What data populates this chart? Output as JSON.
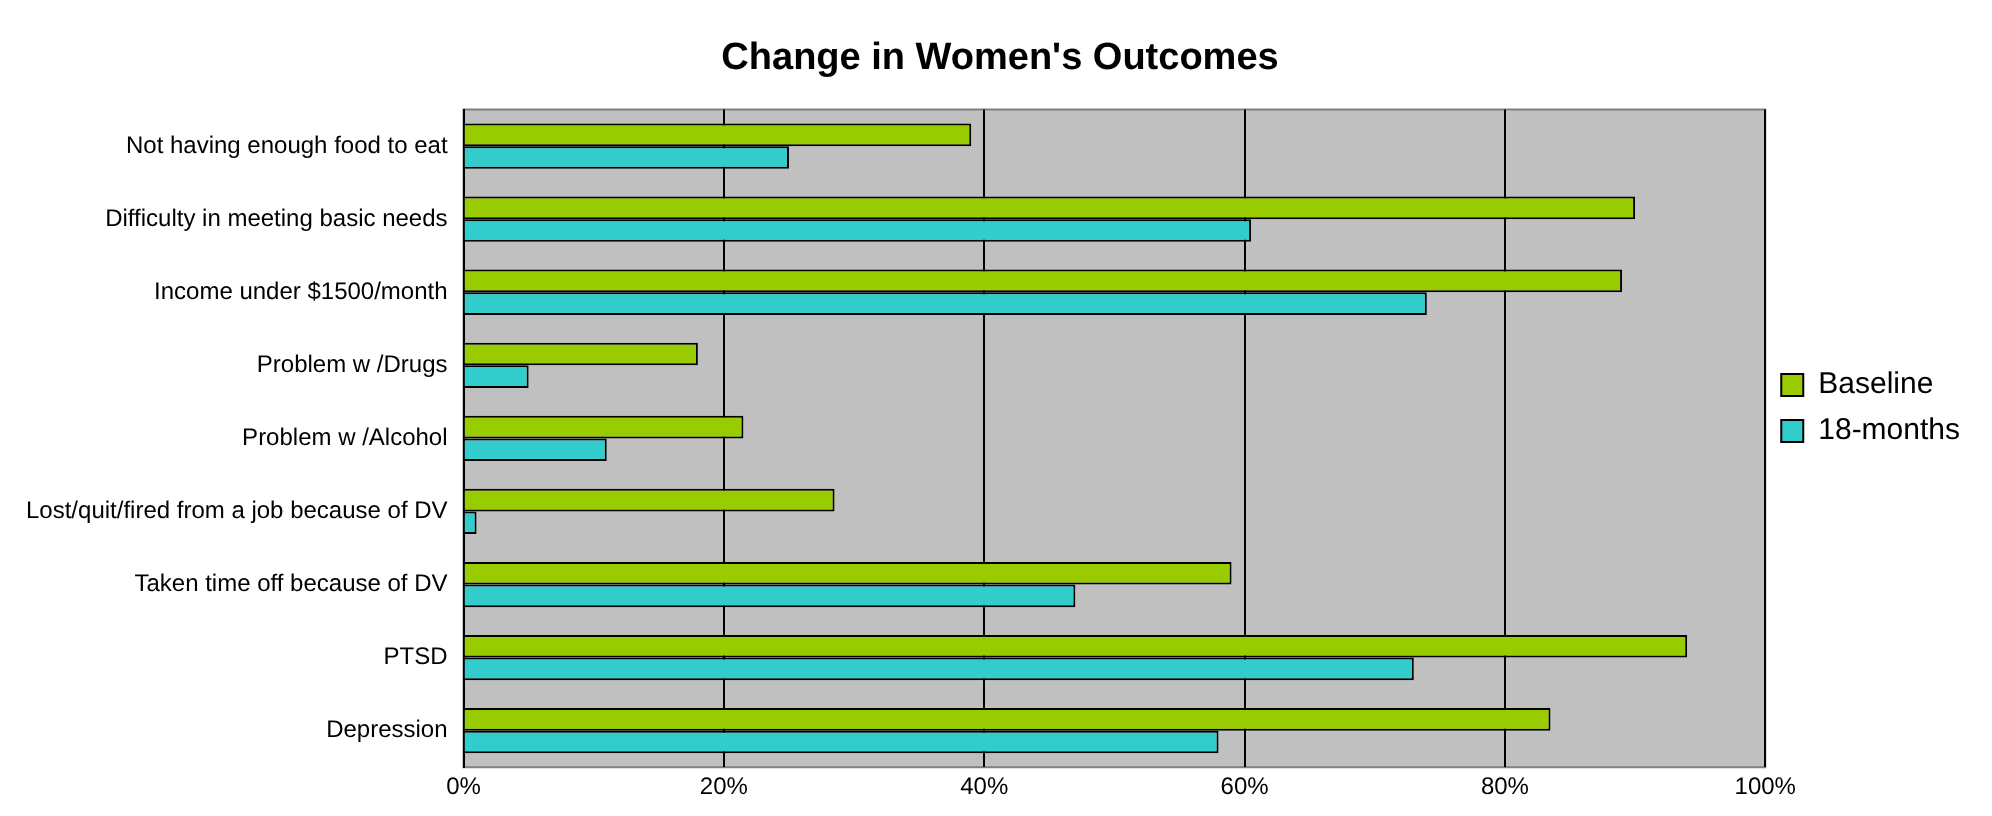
{
  "chart_data": {
    "type": "bar",
    "orientation": "horizontal",
    "title": "Change in Women's Outcomes",
    "categories": [
      "Not having enough food to eat",
      "Difficulty in meeting basic needs",
      "Income under $1500/month",
      "Problem w /Drugs",
      "Problem w /Alcohol",
      "Lost/quit/fired from a job because of DV",
      "Taken time off because of DV",
      "PTSD",
      "Depression"
    ],
    "series": [
      {
        "name": "Baseline",
        "color": "#99cc00",
        "values": [
          39,
          90,
          89,
          18,
          21.5,
          28.5,
          59,
          94,
          83.5
        ]
      },
      {
        "name": "18-months",
        "color": "#33cccc",
        "values": [
          25,
          60.5,
          74,
          5,
          11,
          1,
          47,
          73,
          58
        ]
      }
    ],
    "xlim": [
      0,
      100
    ],
    "xticks": [
      {
        "value": 0,
        "label": "0%"
      },
      {
        "value": 20,
        "label": "20%"
      },
      {
        "value": 40,
        "label": "40%"
      },
      {
        "value": 60,
        "label": "60%"
      },
      {
        "value": 80,
        "label": "80%"
      },
      {
        "value": 100,
        "label": "100%"
      }
    ],
    "grid": "x",
    "legend": "right"
  }
}
